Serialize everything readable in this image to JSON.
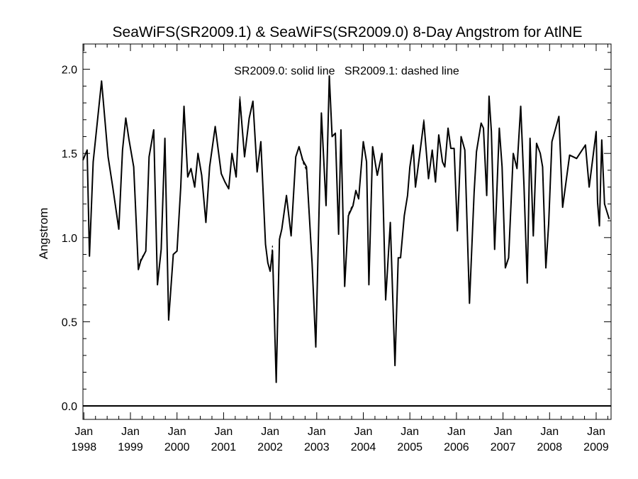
{
  "chart_data": {
    "type": "line",
    "title": "SeaWiFS(SR2009.1) & SeaWiFS(SR2009.0) 8-Day Angstrom for AtlNE",
    "annotation": "SR2009.0: solid line   SR2009.1: dashed line",
    "ylabel": "Angstrom",
    "xlabel": "",
    "xlim": [
      1997.98,
      2009.32
    ],
    "ylim": [
      -0.08,
      2.15
    ],
    "grid": false,
    "y_ticks": [
      0.0,
      0.5,
      1.0,
      1.5,
      2.0
    ],
    "y_tick_labels": [
      "0.0",
      "0.5",
      "1.0",
      "1.5",
      "2.0"
    ],
    "x_ticks": [
      1998,
      1999,
      2000,
      2001,
      2002,
      2003,
      2004,
      2005,
      2006,
      2007,
      2008,
      2009
    ],
    "x_tick_labels": [
      {
        "month": "Jan",
        "year": "1998"
      },
      {
        "month": "Jan",
        "year": "1999"
      },
      {
        "month": "Jan",
        "year": "2000"
      },
      {
        "month": "Jan",
        "year": "2001"
      },
      {
        "month": "Jan",
        "year": "2002"
      },
      {
        "month": "Jan",
        "year": "2003"
      },
      {
        "month": "Jan",
        "year": "2004"
      },
      {
        "month": "Jan",
        "year": "2005"
      },
      {
        "month": "Jan",
        "year": "2006"
      },
      {
        "month": "Jan",
        "year": "2007"
      },
      {
        "month": "Jan",
        "year": "2008"
      },
      {
        "month": "Jan",
        "year": "2009"
      }
    ],
    "reference_line": 0.0,
    "series": [
      {
        "style": "solid",
        "x": [
          1997.98,
          1998.07,
          1998.12,
          1998.2,
          1998.38,
          1998.52,
          1998.62,
          1998.75,
          1998.83,
          1998.9,
          1998.97,
          1999.07,
          1999.17,
          1999.22,
          1999.33,
          1999.4,
          1999.5,
          1999.58,
          1999.66,
          1999.74,
          1999.82,
          1999.92,
          2000.0,
          2000.08,
          2000.15,
          2000.23,
          2000.3,
          2000.38,
          2000.45,
          2000.53,
          2000.62,
          2000.7,
          2000.82,
          2000.95,
          2001.03,
          2001.11,
          2001.18,
          2001.27,
          2001.35,
          2001.45,
          2001.55,
          2001.63,
          2001.72,
          2001.8,
          2001.9,
          2001.95,
          2002.0,
          2002.05,
          2002.13,
          2002.2,
          2002.25,
          2002.35,
          2002.45,
          2002.55,
          2002.62,
          2002.7,
          2002.78,
          2002.9,
          2002.98,
          2003.1,
          2003.2,
          2003.27,
          2003.33,
          2003.4,
          2003.47,
          2003.52,
          2003.6,
          2003.68,
          2003.78,
          2003.84,
          2003.9,
          2004.0,
          2004.07,
          2004.12,
          2004.2,
          2004.3,
          2004.4,
          2004.48,
          2004.58,
          2004.68,
          2004.75,
          2004.8,
          2004.88,
          2004.95,
          2005.0,
          2005.07,
          2005.12,
          2005.2,
          2005.3,
          2005.4,
          2005.48,
          2005.55,
          2005.62,
          2005.7,
          2005.75,
          2005.82,
          2005.88,
          2005.95,
          2006.02,
          2006.1,
          2006.18,
          2006.28,
          2006.38,
          2006.43,
          2006.53,
          2006.58,
          2006.65,
          2006.7,
          2006.75,
          2006.82,
          2006.92,
          2006.98,
          2007.05,
          2007.12,
          2007.22,
          2007.3,
          2007.38,
          2007.45,
          2007.52,
          2007.58,
          2007.65,
          2007.72,
          2007.8,
          2007.85,
          2007.92,
          2007.98,
          2008.05,
          2008.2,
          2008.28,
          2008.43,
          2008.58,
          2008.77,
          2008.85,
          2009.0,
          2009.03,
          2009.07,
          2009.12,
          2009.18,
          2009.28
        ],
        "y": [
          1.46,
          1.52,
          0.89,
          1.45,
          1.93,
          1.48,
          1.3,
          1.05,
          1.52,
          1.71,
          1.58,
          1.42,
          0.81,
          0.86,
          0.92,
          1.48,
          1.64,
          0.72,
          0.93,
          1.59,
          0.51,
          0.9,
          0.92,
          1.3,
          1.78,
          1.36,
          1.41,
          1.3,
          1.5,
          1.37,
          1.09,
          1.42,
          1.66,
          1.38,
          1.33,
          1.29,
          1.5,
          1.36,
          1.82,
          1.48,
          1.71,
          1.81,
          1.39,
          1.57,
          0.96,
          0.85,
          0.8,
          0.92,
          0.14,
          0.99,
          1.05,
          1.25,
          1.01,
          1.48,
          1.54,
          1.46,
          1.42,
          0.85,
          0.35,
          1.74,
          1.19,
          1.96,
          1.6,
          1.62,
          1.02,
          1.64,
          0.71,
          1.13,
          1.19,
          1.28,
          1.23,
          1.57,
          1.45,
          0.72,
          1.54,
          1.37,
          1.5,
          0.63,
          1.09,
          0.24,
          0.88,
          0.88,
          1.13,
          1.25,
          1.42,
          1.55,
          1.3,
          1.47,
          1.69,
          1.35,
          1.52,
          1.33,
          1.61,
          1.45,
          1.42,
          1.65,
          1.53,
          1.53,
          1.04,
          1.6,
          1.52,
          0.61,
          1.27,
          1.51,
          1.68,
          1.65,
          1.25,
          1.84,
          1.63,
          0.93,
          1.65,
          1.42,
          0.82,
          0.88,
          1.5,
          1.41,
          1.78,
          1.31,
          0.73,
          1.59,
          1.01,
          1.56,
          1.5,
          1.42,
          0.82,
          1.08,
          1.57,
          1.72,
          1.18,
          1.49,
          1.47,
          1.55,
          1.3,
          1.63,
          1.21,
          1.07,
          1.58,
          1.2,
          1.11
        ]
      },
      {
        "style": "dashed",
        "x": [
          1997.98,
          1998.07,
          1998.12,
          1998.2,
          1998.38,
          1998.52,
          1998.62,
          1998.75,
          1998.83,
          1998.9,
          1998.97,
          1999.07,
          1999.17,
          1999.22,
          1999.33,
          1999.4,
          1999.5,
          1999.58,
          1999.66,
          1999.74,
          1999.82,
          1999.92,
          2000.0,
          2000.08,
          2000.15,
          2000.23,
          2000.3,
          2000.38,
          2000.45,
          2000.53,
          2000.62,
          2000.7,
          2000.82,
          2000.95,
          2001.03,
          2001.11,
          2001.18,
          2001.27,
          2001.35,
          2001.45,
          2001.55,
          2001.63,
          2001.72,
          2001.8,
          2001.9,
          2001.95,
          2002.0,
          2002.05,
          2002.13,
          2002.2,
          2002.25,
          2002.35,
          2002.45,
          2002.55,
          2002.62,
          2002.7,
          2002.78,
          2002.9,
          2002.98,
          2003.1,
          2003.2,
          2003.27,
          2003.33,
          2003.4,
          2003.47,
          2003.52,
          2003.6,
          2003.68,
          2003.78,
          2003.84,
          2003.9,
          2004.0,
          2004.07,
          2004.12,
          2004.2,
          2004.3,
          2004.4,
          2004.48,
          2004.58,
          2004.68,
          2004.75,
          2004.8,
          2004.88,
          2004.95,
          2005.0,
          2005.07,
          2005.12,
          2005.2,
          2005.3,
          2005.4,
          2005.48,
          2005.55,
          2005.62,
          2005.7,
          2005.75,
          2005.82,
          2005.88,
          2005.95,
          2006.02,
          2006.1,
          2006.18,
          2006.28,
          2006.38,
          2006.43,
          2006.53,
          2006.58,
          2006.65,
          2006.7,
          2006.75,
          2006.82,
          2006.92,
          2006.98,
          2007.05,
          2007.12,
          2007.22,
          2007.3,
          2007.38,
          2007.45,
          2007.52,
          2007.58,
          2007.65,
          2007.72,
          2007.8,
          2007.85,
          2007.92,
          2007.98,
          2008.05,
          2008.2,
          2008.28,
          2008.43,
          2008.58,
          2008.77,
          2008.85,
          2009.0,
          2009.03,
          2009.07,
          2009.12,
          2009.18,
          2009.28
        ],
        "y": [
          1.46,
          1.52,
          0.89,
          1.45,
          1.93,
          1.48,
          1.3,
          1.05,
          1.52,
          1.71,
          1.58,
          1.42,
          0.82,
          0.87,
          0.92,
          1.48,
          1.64,
          0.72,
          0.93,
          1.59,
          0.51,
          0.9,
          0.92,
          1.3,
          1.78,
          1.36,
          1.41,
          1.3,
          1.5,
          1.37,
          1.09,
          1.42,
          1.66,
          1.38,
          1.33,
          1.29,
          1.5,
          1.36,
          1.84,
          1.48,
          1.71,
          1.81,
          1.39,
          1.57,
          0.96,
          0.85,
          0.8,
          0.95,
          0.14,
          1.0,
          1.05,
          1.25,
          1.01,
          1.48,
          1.54,
          1.45,
          1.4,
          0.85,
          0.35,
          1.74,
          1.19,
          1.96,
          1.6,
          1.62,
          1.02,
          1.64,
          0.71,
          1.14,
          1.2,
          1.28,
          1.23,
          1.57,
          1.45,
          0.72,
          1.54,
          1.37,
          1.5,
          0.63,
          1.09,
          0.24,
          0.88,
          0.88,
          1.13,
          1.25,
          1.42,
          1.55,
          1.3,
          1.47,
          1.7,
          1.35,
          1.52,
          1.33,
          1.61,
          1.45,
          1.42,
          1.65,
          1.53,
          1.53,
          1.04,
          1.6,
          1.52,
          0.61,
          1.27,
          1.51,
          1.68,
          1.65,
          1.25,
          1.84,
          1.63,
          0.93,
          1.65,
          1.42,
          0.82,
          0.88,
          1.5,
          1.41,
          1.78,
          1.31,
          0.73,
          1.59,
          1.01,
          1.56,
          1.5,
          1.42,
          0.82,
          1.08,
          1.57,
          1.72,
          1.18,
          1.49,
          1.47,
          1.55,
          1.3,
          1.63,
          1.21,
          1.07,
          1.58,
          1.2,
          1.11
        ]
      }
    ]
  }
}
